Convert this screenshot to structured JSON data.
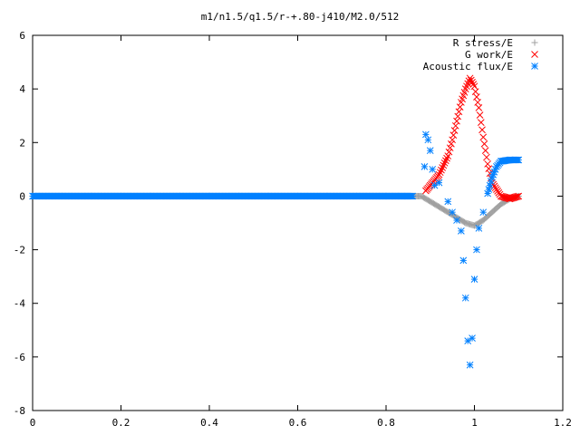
{
  "chart_data": {
    "type": "scatter",
    "title": "m1/n1.5/q1.5/r-+.80-j410/M2.0/512",
    "xlabel": "",
    "ylabel": "",
    "xlim": [
      0,
      1.2
    ],
    "ylim": [
      -8,
      6
    ],
    "x_ticks": [
      "0",
      "0.2",
      "0.4",
      "0.6",
      "0.8",
      "1",
      "1.2"
    ],
    "y_ticks": [
      "6",
      "4",
      "2",
      "0",
      "-2",
      "-4",
      "-6",
      "-8"
    ],
    "grid": false,
    "legend_position": "top-right",
    "series": [
      {
        "name": "R stress/E",
        "marker": "plus",
        "color": "#a0a0a0",
        "x": [
          0.0,
          0.1,
          0.2,
          0.3,
          0.4,
          0.5,
          0.6,
          0.7,
          0.8,
          0.88,
          0.9,
          0.92,
          0.94,
          0.96,
          0.98,
          1.0,
          1.02,
          1.04,
          1.06,
          1.08,
          1.1
        ],
        "y": [
          0,
          0,
          0,
          0,
          0,
          0,
          0,
          0,
          0,
          0,
          -0.2,
          -0.4,
          -0.6,
          -0.8,
          -1.0,
          -1.1,
          -0.9,
          -0.6,
          -0.3,
          -0.1,
          0
        ]
      },
      {
        "name": "G work/E",
        "marker": "cross",
        "color": "#ff0000",
        "x": [
          0.89,
          0.9,
          0.92,
          0.94,
          0.95,
          0.96,
          0.97,
          0.98,
          0.99,
          1.0,
          1.01,
          1.02,
          1.03,
          1.04,
          1.06,
          1.08,
          1.1
        ],
        "y": [
          0.2,
          0.4,
          0.8,
          1.5,
          2.1,
          2.8,
          3.5,
          4.0,
          4.4,
          4.1,
          3.3,
          2.2,
          1.2,
          0.5,
          0.0,
          -0.1,
          0.0
        ]
      },
      {
        "name": "Acoustic flux/E",
        "marker": "asterisk",
        "color": "#0080ff",
        "x": [
          0.0,
          0.1,
          0.2,
          0.3,
          0.4,
          0.5,
          0.6,
          0.7,
          0.8,
          0.86,
          0.887,
          0.89,
          0.895,
          0.9,
          0.905,
          0.91,
          0.92,
          0.94,
          0.95,
          0.96,
          0.97,
          0.975,
          0.98,
          0.985,
          0.99,
          0.995,
          1.0,
          1.005,
          1.01,
          1.02,
          1.03,
          1.04,
          1.05,
          1.06,
          1.08,
          1.1
        ],
        "y": [
          0,
          0,
          0,
          0,
          0,
          0,
          0,
          0,
          0,
          0,
          1.1,
          2.3,
          2.1,
          1.7,
          1.0,
          0.4,
          0.5,
          -0.2,
          -0.6,
          -0.9,
          -1.3,
          -2.4,
          -3.8,
          -5.4,
          -6.3,
          -5.3,
          -3.1,
          -2.0,
          -1.2,
          -0.6,
          0.1,
          0.7,
          1.1,
          1.3,
          1.35,
          1.35
        ]
      }
    ]
  }
}
